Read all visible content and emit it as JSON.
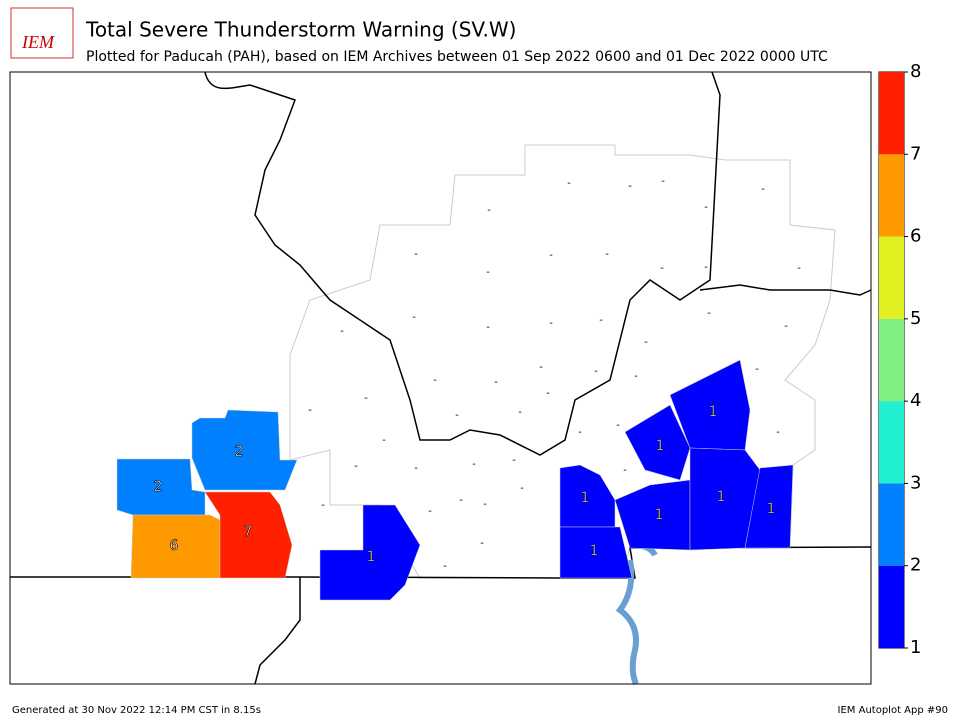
{
  "header": {
    "logo": "IEM",
    "title": "Total Severe Thunderstorm Warning (SV.W)",
    "subtitle": "Plotted for Paducah (PAH), based on IEM Archives  between 01 Sep 2022 0600 and 01 Dec 2022 0000 UTC"
  },
  "colorbar": {
    "ticks": [
      1,
      2,
      3,
      4,
      5,
      6,
      7,
      8
    ],
    "colors": [
      "#0000ff",
      "#0080ff",
      "#20f0d0",
      "#80f080",
      "#e0f020",
      "#ff9900",
      "#ff2000"
    ]
  },
  "counties": {
    "values": [
      2,
      2,
      6,
      7,
      1,
      1,
      1,
      1,
      1,
      1,
      1,
      1
    ],
    "empty_label": "-"
  },
  "footer": {
    "left": "Generated at 30 Nov 2022 12:14 PM CST in 8.15s",
    "right": "IEM Autoplot App #90"
  }
}
